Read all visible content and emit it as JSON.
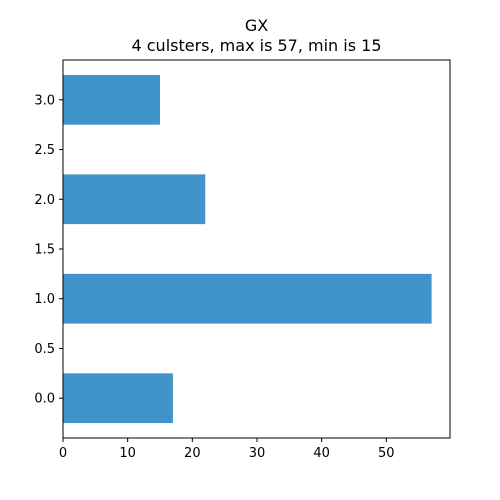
{
  "chart_data": {
    "type": "bar",
    "orientation": "horizontal",
    "title": "GX",
    "subtitle": "4 culsters, max is 57, min is 15",
    "xlabel": "",
    "ylabel": "",
    "y": [
      0,
      1,
      2,
      3
    ],
    "values": [
      17,
      57,
      22,
      15
    ],
    "bar_height": 0.5,
    "xlim": [
      0,
      59.85
    ],
    "ylim": [
      -0.4,
      3.4
    ],
    "xticks": [
      0,
      10,
      20,
      30,
      40,
      50
    ],
    "xtick_labels": [
      "0",
      "10",
      "20",
      "30",
      "40",
      "50"
    ],
    "yticks": [
      0,
      0.5,
      1,
      1.5,
      2,
      2.5,
      3
    ],
    "ytick_labels": [
      "0.0",
      "0.5",
      "1.0",
      "1.5",
      "2.0",
      "2.5",
      "3.0"
    ],
    "bar_color": "#4194c9",
    "grid": false,
    "legend": "none"
  }
}
